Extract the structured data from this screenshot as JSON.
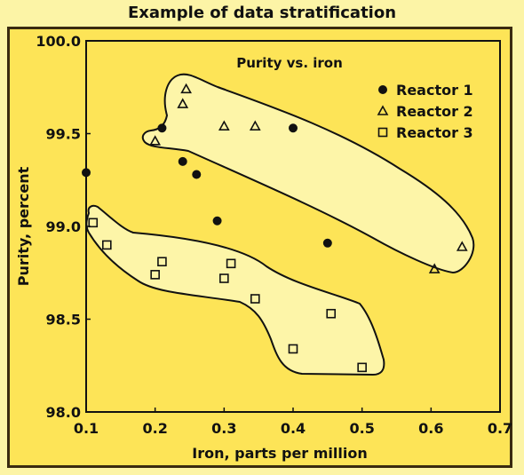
{
  "title": "Example of data stratification",
  "chart_data": {
    "type": "scatter",
    "title": "Purity vs. iron",
    "xlabel": "Iron, parts per million",
    "ylabel": "Purity, percent",
    "xlim": [
      0.1,
      0.7
    ],
    "ylim": [
      98.0,
      100.0
    ],
    "xticks": [
      "0.1",
      "0.2",
      "0.3",
      "0.4",
      "0.5",
      "0.6",
      "0.7"
    ],
    "yticks": [
      "98.0",
      "98.5",
      "99.0",
      "99.5",
      "100.0"
    ],
    "grid": false,
    "legend_position": "top-right",
    "series": [
      {
        "name": "Reactor 1",
        "marker": "filled-circle",
        "points": [
          [
            0.1,
            99.29
          ],
          [
            0.21,
            99.53
          ],
          [
            0.24,
            99.35
          ],
          [
            0.26,
            99.28
          ],
          [
            0.29,
            99.03
          ],
          [
            0.4,
            99.53
          ],
          [
            0.45,
            98.91
          ]
        ]
      },
      {
        "name": "Reactor 2",
        "marker": "open-triangle",
        "points": [
          [
            0.2,
            99.46
          ],
          [
            0.24,
            99.66
          ],
          [
            0.245,
            99.74
          ],
          [
            0.3,
            99.54
          ],
          [
            0.345,
            99.54
          ],
          [
            0.605,
            98.77
          ],
          [
            0.645,
            98.89
          ]
        ]
      },
      {
        "name": "Reactor 3",
        "marker": "open-square",
        "points": [
          [
            0.11,
            99.02
          ],
          [
            0.13,
            98.9
          ],
          [
            0.2,
            98.74
          ],
          [
            0.21,
            98.81
          ],
          [
            0.3,
            98.72
          ],
          [
            0.31,
            98.8
          ],
          [
            0.345,
            98.61
          ],
          [
            0.4,
            98.34
          ],
          [
            0.455,
            98.53
          ],
          [
            0.5,
            98.24
          ]
        ]
      }
    ],
    "colors": {
      "plot_background": "#fde457",
      "region_fill": "#fdf5a8",
      "figure_background": "#fcf4a6",
      "ink": "#111111"
    }
  }
}
